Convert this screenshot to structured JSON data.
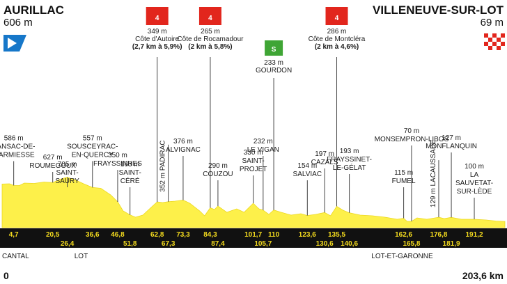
{
  "chart_data": {
    "type": "area",
    "start": {
      "name": "AURILLAC",
      "altitude": "606 m"
    },
    "finish": {
      "name": "VILLENEUVE-SUR-LOT",
      "altitude": "69 m"
    },
    "x_axis": {
      "start_label": "0",
      "end_label": "203,6 km",
      "xlim": [
        0,
        203.6
      ]
    },
    "regions": [
      {
        "label": "CANTAL",
        "km": 0
      },
      {
        "label": "LOT",
        "km": 32
      },
      {
        "label": "LOT-ET-GARONNE",
        "km": 162
      }
    ],
    "km_markers": [
      {
        "km": 4.7,
        "label": "4,7",
        "row": 0
      },
      {
        "km": 20.5,
        "label": "20,5",
        "row": 0
      },
      {
        "km": 26.4,
        "label": "26,4",
        "row": 1
      },
      {
        "km": 36.6,
        "label": "36,6",
        "row": 0
      },
      {
        "km": 46.8,
        "label": "46,8",
        "row": 0
      },
      {
        "km": 51.8,
        "label": "51,8",
        "row": 1
      },
      {
        "km": 62.8,
        "label": "62,8",
        "row": 0
      },
      {
        "km": 67.3,
        "label": "67,3",
        "row": 1
      },
      {
        "km": 73.3,
        "label": "73,3",
        "row": 0
      },
      {
        "km": 84.3,
        "label": "84,3",
        "row": 0
      },
      {
        "km": 87.4,
        "label": "87,4",
        "row": 1
      },
      {
        "km": 101.7,
        "label": "101,7",
        "row": 0
      },
      {
        "km": 105.7,
        "label": "105,7",
        "row": 1
      },
      {
        "km": 110,
        "label": "110",
        "row": 0
      },
      {
        "km": 123.6,
        "label": "123,6",
        "row": 0
      },
      {
        "km": 130.6,
        "label": "130,6",
        "row": 1
      },
      {
        "km": 135.5,
        "label": "135,5",
        "row": 0
      },
      {
        "km": 140.6,
        "label": "140,6",
        "row": 1
      },
      {
        "km": 162.6,
        "label": "162,6",
        "row": 0
      },
      {
        "km": 165.8,
        "label": "165,8",
        "row": 1
      },
      {
        "km": 176.8,
        "label": "176,8",
        "row": 0
      },
      {
        "km": 181.9,
        "label": "181,9",
        "row": 1
      },
      {
        "km": 191.2,
        "label": "191,2",
        "row": 0
      }
    ],
    "profile": [
      {
        "km": 0,
        "alt": 606
      },
      {
        "km": 3,
        "alt": 610
      },
      {
        "km": 4.7,
        "alt": 586
      },
      {
        "km": 7,
        "alt": 585
      },
      {
        "km": 9,
        "alt": 620
      },
      {
        "km": 13,
        "alt": 615
      },
      {
        "km": 17,
        "alt": 635
      },
      {
        "km": 20.5,
        "alt": 627
      },
      {
        "km": 24,
        "alt": 680
      },
      {
        "km": 26.4,
        "alt": 705
      },
      {
        "km": 30,
        "alt": 660
      },
      {
        "km": 33,
        "alt": 610
      },
      {
        "km": 36.6,
        "alt": 557
      },
      {
        "km": 40,
        "alt": 545
      },
      {
        "km": 44,
        "alt": 450
      },
      {
        "km": 46.8,
        "alt": 350
      },
      {
        "km": 49,
        "alt": 220
      },
      {
        "km": 51.8,
        "alt": 163
      },
      {
        "km": 54,
        "alt": 130
      },
      {
        "km": 57,
        "alt": 160
      },
      {
        "km": 60,
        "alt": 260
      },
      {
        "km": 62.8,
        "alt": 349
      },
      {
        "km": 65,
        "alt": 340
      },
      {
        "km": 67.3,
        "alt": 352
      },
      {
        "km": 70,
        "alt": 360
      },
      {
        "km": 73.3,
        "alt": 376
      },
      {
        "km": 76,
        "alt": 330
      },
      {
        "km": 80,
        "alt": 220
      },
      {
        "km": 82,
        "alt": 150
      },
      {
        "km": 84.3,
        "alt": 265
      },
      {
        "km": 86,
        "alt": 240
      },
      {
        "km": 87.4,
        "alt": 290
      },
      {
        "km": 91,
        "alt": 200
      },
      {
        "km": 95,
        "alt": 250
      },
      {
        "km": 98,
        "alt": 200
      },
      {
        "km": 101.7,
        "alt": 330
      },
      {
        "km": 104,
        "alt": 250
      },
      {
        "km": 105.7,
        "alt": 232
      },
      {
        "km": 108,
        "alt": 170
      },
      {
        "km": 110,
        "alt": 233
      },
      {
        "km": 113,
        "alt": 200
      },
      {
        "km": 117,
        "alt": 160
      },
      {
        "km": 121,
        "alt": 180
      },
      {
        "km": 123.6,
        "alt": 154
      },
      {
        "km": 127,
        "alt": 170
      },
      {
        "km": 130.6,
        "alt": 197
      },
      {
        "km": 133,
        "alt": 150
      },
      {
        "km": 135.5,
        "alt": 286
      },
      {
        "km": 138,
        "alt": 230
      },
      {
        "km": 140.6,
        "alt": 193
      },
      {
        "km": 145,
        "alt": 160
      },
      {
        "km": 150,
        "alt": 150
      },
      {
        "km": 155,
        "alt": 130
      },
      {
        "km": 160,
        "alt": 100
      },
      {
        "km": 162.6,
        "alt": 115
      },
      {
        "km": 164,
        "alt": 70
      },
      {
        "km": 165.8,
        "alt": 70
      },
      {
        "km": 168,
        "alt": 120
      },
      {
        "km": 172,
        "alt": 100
      },
      {
        "km": 176.8,
        "alt": 129
      },
      {
        "km": 179,
        "alt": 110
      },
      {
        "km": 181.9,
        "alt": 127
      },
      {
        "km": 186,
        "alt": 100
      },
      {
        "km": 191.2,
        "alt": 100
      },
      {
        "km": 196,
        "alt": 90
      },
      {
        "km": 200,
        "alt": 75
      },
      {
        "km": 203.6,
        "alt": 69
      }
    ],
    "places": [
      {
        "km": 4.7,
        "lines": [
          "586 m",
          "SANSAC-DE-",
          "MARMIESSE"
        ],
        "label_top_alt": 1235,
        "line_to_alt": 586
      },
      {
        "km": 20.5,
        "lines": [
          "627 m",
          "ROUMEGOUX"
        ],
        "label_top_alt": 960,
        "line_to_alt": 627
      },
      {
        "km": 26.4,
        "lines": [
          "705 m",
          "SAINT-",
          "SAURY"
        ],
        "label_top_alt": 860,
        "line_to_alt": 705
      },
      {
        "km": 36.6,
        "lines": [
          "557 m",
          "SOUSCEYRAC-",
          "EN-QUERCY"
        ],
        "label_top_alt": 1235,
        "line_to_alt": 557
      },
      {
        "km": 46.8,
        "lines": [
          "350 m",
          "FRAYSSINHES"
        ],
        "label_top_alt": 990,
        "line_to_alt": 350
      },
      {
        "km": 51.8,
        "lines": [
          "163 m",
          "SAINT-",
          "CÉRÉ"
        ],
        "label_top_alt": 860,
        "line_to_alt": 163
      },
      {
        "km": 73.3,
        "lines": [
          "376 m",
          "ALVIGNAC"
        ],
        "label_top_alt": 1190,
        "line_to_alt": 376
      },
      {
        "km": 87.4,
        "lines": [
          "290 m",
          "COUZOU"
        ],
        "label_top_alt": 840,
        "line_to_alt": 290
      },
      {
        "km": 101.7,
        "lines": [
          "330 m",
          "SAINT-",
          "PROJET"
        ],
        "label_top_alt": 1030,
        "line_to_alt": 330
      },
      {
        "km": 105.7,
        "lines": [
          "232 m",
          "LE VIGAN"
        ],
        "label_top_alt": 1190,
        "line_to_alt": 232
      },
      {
        "km": 123.6,
        "lines": [
          "154 m",
          "SALVIAC"
        ],
        "label_top_alt": 840,
        "line_to_alt": 154
      },
      {
        "km": 130.6,
        "lines": [
          "197 m",
          "CAZALS"
        ],
        "label_top_alt": 1010,
        "line_to_alt": 197
      },
      {
        "km": 140.6,
        "lines": [
          "193 m",
          "FRAYSSINET-",
          "LE-GÉLAT"
        ],
        "label_top_alt": 1050,
        "line_to_alt": 193
      },
      {
        "km": 162.6,
        "lines": [
          "115 m",
          "FUMEL"
        ],
        "label_top_alt": 740,
        "line_to_alt": 115
      },
      {
        "km": 165.8,
        "lines": [
          "70 m",
          "MONSEMPRON-LIBOS"
        ],
        "label_top_alt": 1340,
        "line_to_alt": 70
      },
      {
        "km": 181.9,
        "lines": [
          "127 m",
          "MONFLANQUIN"
        ],
        "label_top_alt": 1240,
        "line_to_alt": 127
      },
      {
        "km": 191.2,
        "lines": [
          "100 m",
          "LA",
          "SAUVETAT-",
          "SUR-LÈDE"
        ],
        "label_top_alt": 830,
        "line_to_alt": 100
      }
    ],
    "climbs": [
      {
        "km": 62.8,
        "category": "4",
        "lines": [
          "349 m",
          "Côte d'Autoire",
          "(2,7 km à 5,9%)"
        ],
        "bold_from": 2
      },
      {
        "km": 84.3,
        "category": "4",
        "lines": [
          "265 m",
          "Côte de Rocamadour",
          "(2 km à 5,8%)"
        ],
        "bold_from": 2
      },
      {
        "km": 135.5,
        "category": "4",
        "lines": [
          "286 m",
          "Côte de Montcléra",
          "(2 km à 4,6%)"
        ],
        "bold_from": 2
      }
    ],
    "sprint": {
      "km": 110,
      "label": "S",
      "lines": [
        "233 m",
        "GOURDON"
      ]
    },
    "vertical_places": [
      {
        "km": 67.3,
        "text": "352 m PADIRAC",
        "line_to_alt": 352
      },
      {
        "km": 176.8,
        "text": "129 m LACAUSSADE",
        "line_to_alt": 129
      }
    ]
  },
  "colors": {
    "fill": "#fdf04a",
    "fill_dark": "#ecd821",
    "band": "#111111",
    "km_text": "#f5dc1e",
    "climb": "#e2261d",
    "sprint": "#3fa535",
    "start_flag": "#1677c9",
    "finish_flag": "#e2261d"
  }
}
